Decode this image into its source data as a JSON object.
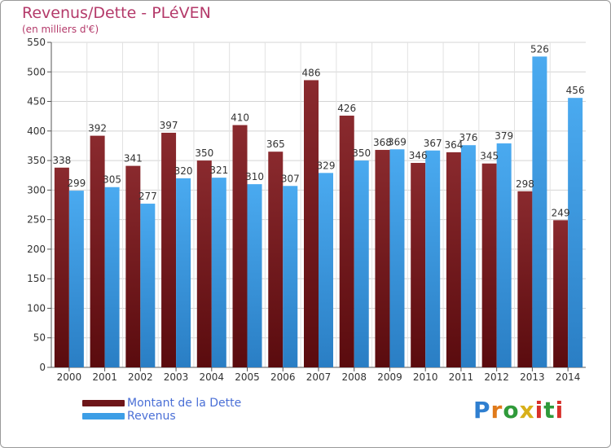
{
  "chart_data": {
    "type": "bar",
    "title": "Revenus/Dette - PLéVEN",
    "subtitle": "(en milliers d'€)",
    "categories": [
      "2000",
      "2001",
      "2002",
      "2003",
      "2004",
      "2005",
      "2006",
      "2007",
      "2008",
      "2009",
      "2010",
      "2011",
      "2012",
      "2013",
      "2014"
    ],
    "series": [
      {
        "name": "Montant de la Dette",
        "color": "#7a1f22",
        "values": [
          338,
          392,
          341,
          397,
          350,
          410,
          365,
          486,
          426,
          368,
          346,
          364,
          345,
          298,
          249
        ]
      },
      {
        "name": "Revenus",
        "color": "#3d9ee6",
        "values": [
          299,
          305,
          277,
          320,
          321,
          310,
          307,
          329,
          350,
          369,
          367,
          376,
          379,
          526,
          456
        ]
      }
    ],
    "ylim": [
      0,
      550
    ],
    "yticks": [
      0,
      50,
      100,
      150,
      200,
      250,
      300,
      350,
      400,
      450,
      500,
      550
    ],
    "grid": true,
    "legend_position": "bottom-left"
  },
  "logo": {
    "letters": [
      {
        "ch": "P",
        "color": "#2f7fd0"
      },
      {
        "ch": "r",
        "color": "#e07a1a"
      },
      {
        "ch": "o",
        "color": "#2f9a3a"
      },
      {
        "ch": "x",
        "color": "#d8b01a"
      },
      {
        "ch": "i",
        "color": "#d8302a"
      },
      {
        "ch": "t",
        "color": "#2f9a3a"
      },
      {
        "ch": "i",
        "color": "#d8302a"
      }
    ]
  }
}
